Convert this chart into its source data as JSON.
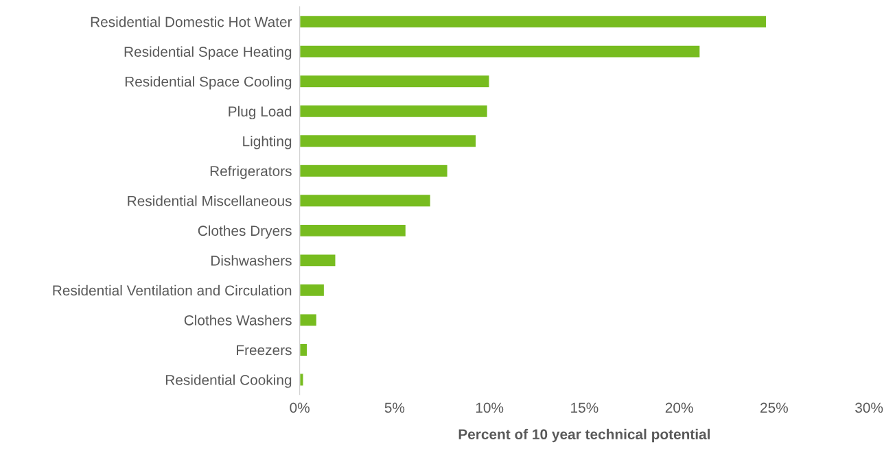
{
  "chart_data": {
    "type": "bar",
    "orientation": "horizontal",
    "xlabel": "Percent of 10 year technical potential",
    "categories": [
      "Residential Domestic Hot Water",
      "Residential Space Heating",
      "Residential Space Cooling",
      "Plug Load",
      "Lighting",
      "Refrigerators",
      "Residential Miscellaneous",
      "Clothes Dryers",
      "Dishwashers",
      "Residential Ventilation and Circulation",
      "Clothes Washers",
      "Freezers",
      "Residential Cooking"
    ],
    "values": [
      24.6,
      21.1,
      10.0,
      9.9,
      9.3,
      7.8,
      6.9,
      5.6,
      1.9,
      1.3,
      0.9,
      0.4,
      0.2
    ],
    "color": "#77bc1f",
    "xlim": [
      0,
      30
    ],
    "xticks": [
      {
        "value": 0,
        "label": "0%"
      },
      {
        "value": 5,
        "label": "5%"
      },
      {
        "value": 10,
        "label": "10%"
      },
      {
        "value": 15,
        "label": "15%"
      },
      {
        "value": 20,
        "label": "20%"
      },
      {
        "value": 25,
        "label": "25%"
      },
      {
        "value": 30,
        "label": "30%"
      }
    ],
    "grid": false
  }
}
